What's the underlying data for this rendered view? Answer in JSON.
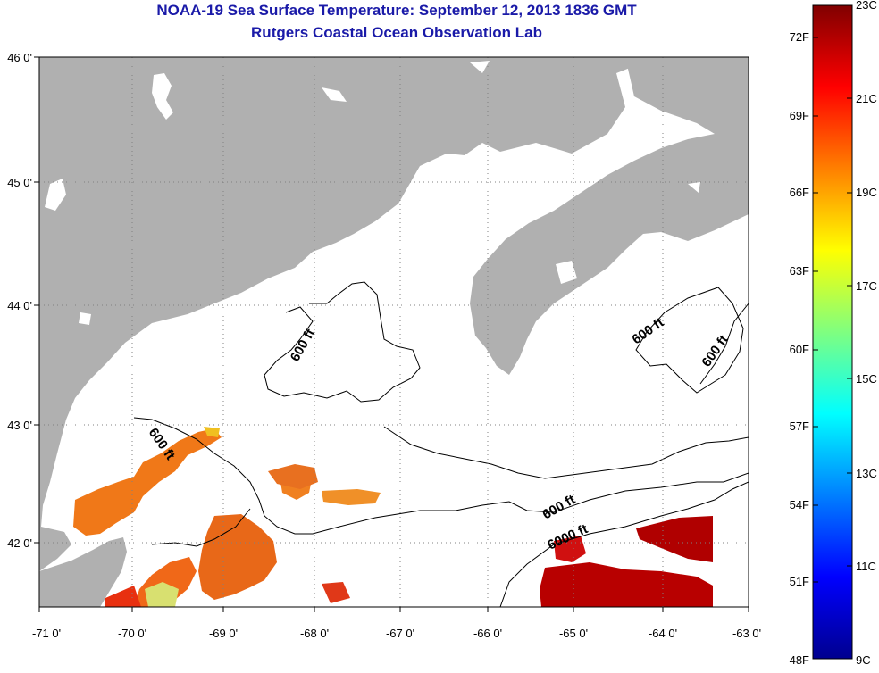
{
  "title": "NOAA-19 Sea Surface Temperature:  September 12, 2013 1836 GMT",
  "subtitle": "Rutgers Coastal Ocean Observation Lab",
  "map": {
    "lon_ticks": [
      "-71 0'",
      "-70 0'",
      "-69 0'",
      "-68 0'",
      "-67 0'",
      "-66 0'",
      "-65 0'",
      "-64 0'",
      "-63 0'"
    ],
    "lat_ticks": [
      "46 0'",
      "45 0'",
      "44 0'",
      "43 0'",
      "42 0'"
    ],
    "lon_range": [
      -71,
      -63
    ],
    "lat_range": [
      41.5,
      46
    ],
    "contour_labels": [
      "600 ft",
      "600 ft",
      "600 ft",
      "600 ft",
      "600 ft",
      "6000 ft"
    ],
    "colors": {
      "land": "#b0b0b0",
      "ocean_no_data": "#ffffff",
      "warm_coastal": "#f07818",
      "hot_offshore": "#b80000"
    }
  },
  "colorbar": {
    "fahrenheit_labels": [
      "72F",
      "69F",
      "66F",
      "63F",
      "60F",
      "57F",
      "54F",
      "51F",
      "48F"
    ],
    "celsius_labels": [
      "23C",
      "21C",
      "19C",
      "17C",
      "15C",
      "13C",
      "11C",
      "9C"
    ],
    "range_celsius": [
      9,
      23
    ],
    "range_fahrenheit": [
      48,
      72
    ]
  }
}
